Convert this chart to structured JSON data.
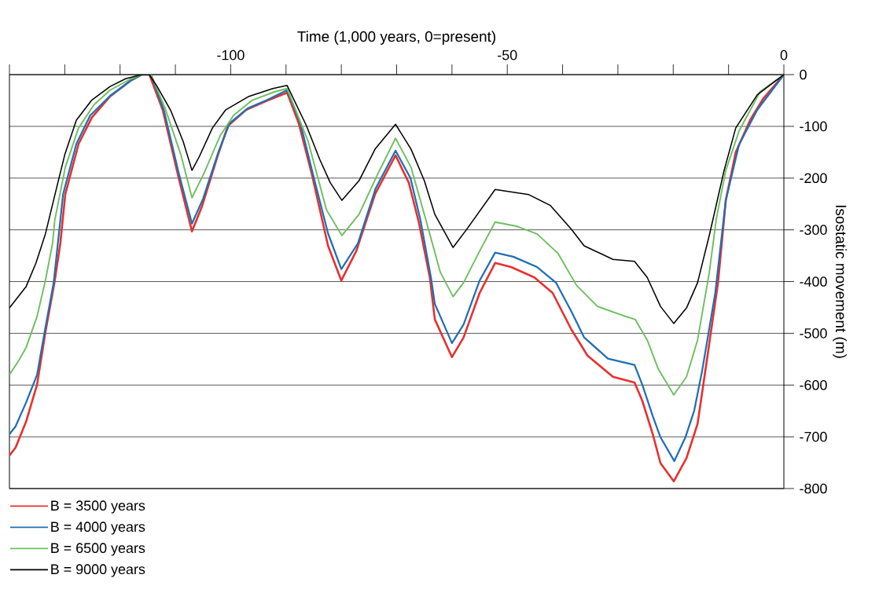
{
  "chart_data": {
    "type": "line",
    "xlabel": "Time (1,000 years, 0=present)",
    "ylabel": "Isostatic movement (m)",
    "xlim": [
      -140,
      0
    ],
    "xticks": [
      {
        "value": -140,
        "label": null
      },
      {
        "value": -130,
        "label": null
      },
      {
        "value": -120,
        "label": null
      },
      {
        "value": -110,
        "label": null
      },
      -100,
      {
        "value": -90,
        "label": null
      },
      {
        "value": -80,
        "label": null
      },
      {
        "value": -70,
        "label": null
      },
      {
        "value": -60,
        "label": null
      },
      -50,
      {
        "value": -40,
        "label": null
      },
      {
        "value": -30,
        "label": null
      },
      {
        "value": -20,
        "label": null
      },
      {
        "value": -10,
        "label": null
      },
      0
    ],
    "ylim": [
      -800,
      0
    ],
    "yticks": [
      0,
      -100,
      -200,
      -300,
      -400,
      -500,
      -600,
      -700,
      -800
    ],
    "grid": "y",
    "legend": "bottom left",
    "marker": "none",
    "line_style": "solid",
    "series": [
      {
        "name": "B = 3500 years",
        "color": "#e8302f",
        "x": [
          -140,
          -138.9,
          -137.0,
          -135.0,
          -133.5,
          -131.8,
          -130.8,
          -129.9,
          -127.5,
          -125.1,
          -121.8,
          -118.0,
          -116.1,
          -114.7,
          -112.3,
          -109.4,
          -107.0,
          -105.2,
          -102.3,
          -100.5,
          -97.2,
          -93.4,
          -89.8,
          -87.7,
          -85.3,
          -82.4,
          -80.0,
          -77.3,
          -73.9,
          -70.2,
          -67.8,
          -66.0,
          -64.0,
          -63.1,
          -60.0,
          -57.9,
          -55.0,
          -52.2,
          -49.3,
          -45.1,
          -41.8,
          -38.4,
          -35.5,
          -30.9,
          -27.0,
          -25.6,
          -23.7,
          -22.3,
          -19.9,
          -17.6,
          -15.6,
          -13.8,
          -11.9,
          -10.5,
          -8.7,
          -6.0,
          -3.7,
          0
        ],
        "values": [
          -736,
          -721,
          -671,
          -599,
          -498,
          -398,
          -326,
          -231,
          -134,
          -83,
          -42,
          -11,
          0,
          0,
          -68,
          -200,
          -303,
          -255,
          -155,
          -99,
          -68,
          -50,
          -35,
          -94,
          -194,
          -331,
          -398,
          -341,
          -231,
          -156,
          -209,
          -285,
          -392,
          -473,
          -546,
          -508,
          -422,
          -364,
          -372,
          -392,
          -422,
          -493,
          -543,
          -584,
          -595,
          -630,
          -695,
          -751,
          -786,
          -741,
          -675,
          -543,
          -402,
          -243,
          -150,
          -86,
          -46,
          0
        ]
      },
      {
        "name": "B = 4000 years",
        "color": "#1f6fb4",
        "x": [
          -140,
          -138.9,
          -137.0,
          -135.0,
          -133.5,
          -132.0,
          -130.3,
          -127.9,
          -125.4,
          -121.8,
          -118.0,
          -116.1,
          -114.4,
          -112.1,
          -109.4,
          -107.0,
          -105.0,
          -102.2,
          -100.2,
          -96.9,
          -93.4,
          -89.8,
          -87.4,
          -85.1,
          -82.4,
          -80.0,
          -77.0,
          -73.8,
          -70.2,
          -67.5,
          -65.7,
          -63.8,
          -63.1,
          -60.0,
          -57.9,
          -55.0,
          -52.2,
          -48.9,
          -44.6,
          -41.2,
          -38.4,
          -36.1,
          -31.8,
          -27.0,
          -25.6,
          -23.7,
          -22.3,
          -19.8,
          -17.8,
          -16.2,
          -14.8,
          -12.4,
          -10.5,
          -8.1,
          -4.8,
          0
        ],
        "values": [
          -695,
          -680,
          -634,
          -580,
          -489,
          -402,
          -231,
          -134,
          -79,
          -41,
          -11,
          0,
          0,
          -68,
          -190,
          -288,
          -240,
          -149,
          -94,
          -65,
          -49,
          -30,
          -94,
          -194,
          -307,
          -376,
          -326,
          -220,
          -147,
          -200,
          -281,
          -392,
          -443,
          -519,
          -483,
          -398,
          -344,
          -352,
          -372,
          -402,
          -458,
          -508,
          -549,
          -561,
          -599,
          -660,
          -701,
          -747,
          -701,
          -649,
          -574,
          -422,
          -243,
          -135,
          -68,
          0
        ]
      },
      {
        "name": "B = 6500 years",
        "color": "#6cbf5f",
        "x": [
          -140,
          -138.4,
          -137.0,
          -135.0,
          -133.5,
          -132.2,
          -131.8,
          -129.9,
          -127.5,
          -124.7,
          -121.8,
          -118.0,
          -116.1,
          -114.4,
          -111.9,
          -109.0,
          -107.0,
          -104.8,
          -101.9,
          -99.5,
          -96.2,
          -92.0,
          -89.8,
          -86.0,
          -82.7,
          -79.9,
          -76.8,
          -73.5,
          -70.2,
          -67.4,
          -65.0,
          -62.1,
          -59.8,
          -57.9,
          -55.0,
          -52.2,
          -48.3,
          -44.6,
          -40.8,
          -37.5,
          -33.7,
          -29.0,
          -26.9,
          -24.7,
          -22.7,
          -19.9,
          -17.6,
          -15.6,
          -13.5,
          -12.2,
          -10.5,
          -8.1,
          -4.3,
          0
        ],
        "values": [
          -580,
          -554,
          -528,
          -467,
          -398,
          -326,
          -281,
          -179,
          -103,
          -58,
          -30,
          -8,
          0,
          0,
          -64,
          -155,
          -238,
          -190,
          -118,
          -79,
          -50,
          -33,
          -27,
          -129,
          -261,
          -311,
          -270,
          -194,
          -123,
          -179,
          -270,
          -382,
          -429,
          -402,
          -341,
          -285,
          -293,
          -308,
          -346,
          -407,
          -448,
          -466,
          -473,
          -513,
          -569,
          -619,
          -584,
          -513,
          -384,
          -278,
          -185,
          -109,
          -33,
          0
        ]
      },
      {
        "name": "B = 9000 years",
        "color": "#000000",
        "x": [
          -140,
          -137.0,
          -135.2,
          -133.5,
          -131.5,
          -130.0,
          -127.9,
          -125.1,
          -121.8,
          -119.0,
          -116.1,
          -114.7,
          -113.3,
          -110.9,
          -108.6,
          -107.0,
          -105.7,
          -103.3,
          -100.9,
          -96.7,
          -92.4,
          -89.8,
          -86.3,
          -83.9,
          -82.0,
          -79.9,
          -76.8,
          -73.9,
          -70.2,
          -67.4,
          -65.0,
          -63.1,
          -59.8,
          -57.4,
          -52.2,
          -46.1,
          -42.2,
          -38.4,
          -36.1,
          -30.9,
          -27.0,
          -24.7,
          -22.3,
          -19.9,
          -17.6,
          -15.6,
          -13.4,
          -10.8,
          -8.7,
          -4.8,
          0
        ],
        "values": [
          -451,
          -410,
          -364,
          -308,
          -220,
          -155,
          -88,
          -49,
          -23,
          -8,
          0,
          0,
          -23,
          -68,
          -129,
          -185,
          -159,
          -103,
          -68,
          -42,
          -27,
          -21,
          -99,
          -164,
          -209,
          -243,
          -205,
          -144,
          -96,
          -144,
          -205,
          -270,
          -334,
          -300,
          -222,
          -232,
          -253,
          -299,
          -331,
          -357,
          -361,
          -392,
          -448,
          -481,
          -451,
          -402,
          -307,
          -185,
          -103,
          -39,
          0
        ]
      }
    ]
  }
}
